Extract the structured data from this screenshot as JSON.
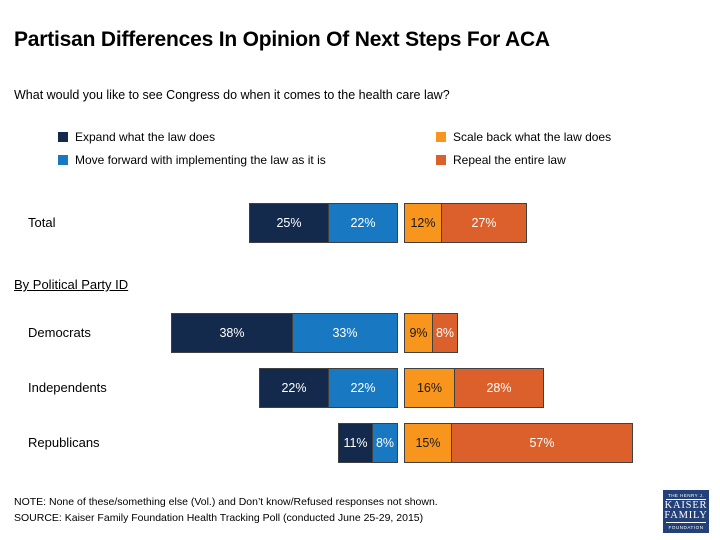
{
  "page": {
    "title": "Partisan Differences In Opinion Of Next Steps For ACA",
    "subtitle": "What would you like to see Congress do when it comes to the health care law?",
    "section_label": "By Political Party ID",
    "note": "NOTE: None of these/something else (Vol.) and Don’t know/Refused responses not shown.",
    "source": "SOURCE: Kaiser Family Foundation Health Tracking Poll (conducted June 25-29, 2015)"
  },
  "legend": {
    "items": [
      {
        "label": "Expand what the law does"
      },
      {
        "label": "Move forward with implementing the law as it is"
      },
      {
        "label": "Scale back what the law does"
      },
      {
        "label": "Repeal the entire law"
      }
    ]
  },
  "chart_data": {
    "type": "bar",
    "variant": "horizontal-stacked-diverging",
    "title": "Partisan Differences In Opinion Of Next Steps For ACA",
    "question": "What would you like to see Congress do when it comes to the health care law?",
    "categories": [
      "Total",
      "Democrats",
      "Independents",
      "Republicans"
    ],
    "series": [
      {
        "name": "Expand what the law does",
        "group": "left",
        "color": "#132A4D",
        "text_color": "#FFFFFF",
        "values": [
          25,
          38,
          22,
          11
        ]
      },
      {
        "name": "Move forward with implementing the law as it is",
        "group": "left",
        "color": "#1878C2",
        "text_color": "#FFFFFF",
        "values": [
          22,
          33,
          22,
          8
        ]
      },
      {
        "name": "Scale back what the law does",
        "group": "right",
        "color": "#F8951D",
        "text_color": "#1A1A1A",
        "values": [
          12,
          9,
          16,
          15
        ]
      },
      {
        "name": "Repeal the entire law",
        "group": "right",
        "color": "#DC602B",
        "text_color": "#FFFFFF",
        "values": [
          27,
          8,
          28,
          57
        ]
      }
    ],
    "value_suffix": "%",
    "axis": "none",
    "grid": false,
    "legend_position": "top",
    "segment_border_color": "#404040"
  },
  "logo": {
    "line1": "THE HENRY J.",
    "line2": "KAISER",
    "line3": "FAMILY",
    "line4": "FOUNDATION",
    "bg_color": "#234079"
  }
}
